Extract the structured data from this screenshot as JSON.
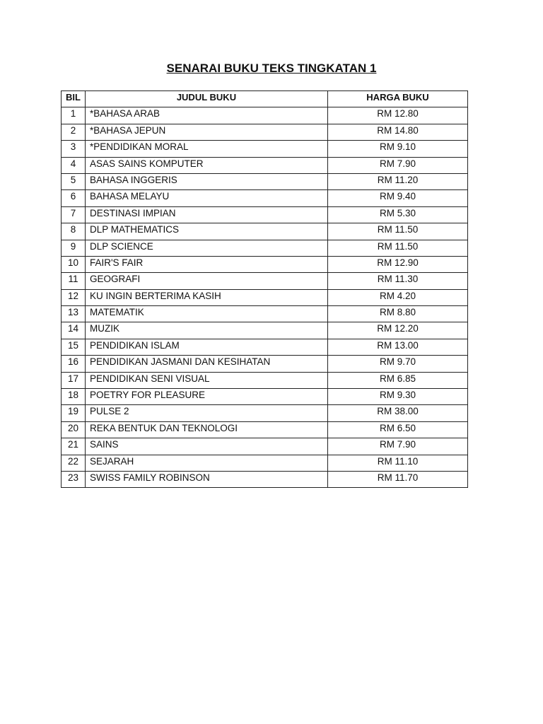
{
  "title": "SENARAI BUKU TEKS TINGKATAN 1",
  "headers": [
    "BIL",
    "JUDUL BUKU",
    "HARGA BUKU"
  ],
  "rows": [
    [
      "1",
      "*BAHASA ARAB",
      "RM 12.80"
    ],
    [
      "2",
      "*BAHASA JEPUN",
      "RM 14.80"
    ],
    [
      "3",
      "*PENDIDIKAN MORAL",
      "RM 9.10"
    ],
    [
      "4",
      "ASAS SAINS KOMPUTER",
      "RM 7.90"
    ],
    [
      "5",
      "BAHASA INGGERIS",
      "RM 11.20"
    ],
    [
      "6",
      "BAHASA MELAYU",
      "RM 9.40"
    ],
    [
      "7",
      "DESTINASI IMPIAN",
      "RM 5.30"
    ],
    [
      "8",
      "DLP MATHEMATICS",
      "RM 11.50"
    ],
    [
      "9",
      "DLP SCIENCE",
      "RM 11.50"
    ],
    [
      "10",
      "FAIR'S FAIR",
      "RM 12.90"
    ],
    [
      "11",
      "GEOGRAFI",
      "RM 11.30"
    ],
    [
      "12",
      "KU INGIN BERTERIMA KASIH",
      "RM 4.20"
    ],
    [
      "13",
      "MATEMATIK",
      "RM 8.80"
    ],
    [
      "14",
      "MUZIK",
      "RM 12.20"
    ],
    [
      "15",
      "PENDIDIKAN ISLAM",
      "RM 13.00"
    ],
    [
      "16",
      "PENDIDIKAN JASMANI DAN KESIHATAN",
      "RM 9.70"
    ],
    [
      "17",
      "PENDIDIKAN SENI VISUAL",
      "RM 6.85"
    ],
    [
      "18",
      "POETRY FOR PLEASURE",
      "RM 9.30"
    ],
    [
      "19",
      "PULSE 2",
      "RM 38.00"
    ],
    [
      "20",
      "REKA BENTUK DAN TEKNOLOGI",
      "RM 6.50"
    ],
    [
      "21",
      "SAINS",
      "RM 7.90"
    ],
    [
      "22",
      "SEJARAH",
      "RM 11.10"
    ],
    [
      "23",
      "SWISS FAMILY ROBINSON",
      "RM 11.70"
    ]
  ]
}
